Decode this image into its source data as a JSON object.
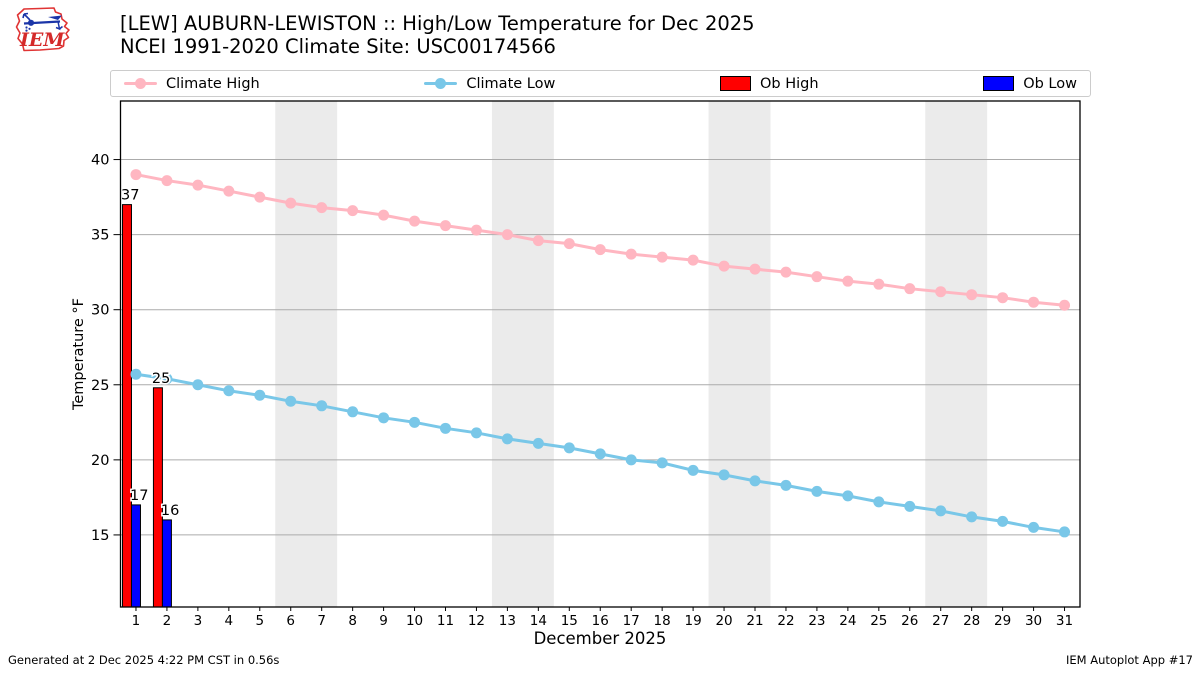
{
  "header": {
    "title": "[LEW] AUBURN-LEWISTON :: High/Low Temperature for Dec 2025",
    "subtitle": "NCEI 1991-2020 Climate Site: USC00174566"
  },
  "logo": {
    "text": "IEM"
  },
  "footer": {
    "generated_text": "Generated at 2 Dec 2025 4:22 PM CST in 0.56s",
    "app_text": "IEM Autoplot App #17"
  },
  "chart_data": {
    "type": "line+bar",
    "title": "[LEW] AUBURN-LEWISTON :: High/Low Temperature for Dec 2025",
    "subtitle": "NCEI 1991-2020 Climate Site: USC00174566",
    "xlabel": "December 2025",
    "ylabel": "Temperature °F",
    "x": [
      1,
      2,
      3,
      4,
      5,
      6,
      7,
      8,
      9,
      10,
      11,
      12,
      13,
      14,
      15,
      16,
      17,
      18,
      19,
      20,
      21,
      22,
      23,
      24,
      25,
      26,
      27,
      28,
      29,
      30,
      31
    ],
    "xlim": [
      0.5,
      31.5
    ],
    "ylim": [
      10.2,
      43.9
    ],
    "yticks": [
      15,
      20,
      25,
      30,
      35,
      40
    ],
    "grid": "horizontal",
    "gridline_color": "#ababab",
    "weekend_bands": [
      [
        5.5,
        7.5
      ],
      [
        12.5,
        14.5
      ],
      [
        19.5,
        21.5
      ],
      [
        26.5,
        28.5
      ]
    ],
    "band_color": "#ebebeb",
    "legend_position": "top",
    "series": [
      {
        "name": "Climate High",
        "type": "line",
        "color": "#ffb6c1",
        "values": [
          39.0,
          38.6,
          38.3,
          37.9,
          37.5,
          37.1,
          36.8,
          36.6,
          36.3,
          35.9,
          35.6,
          35.3,
          35.0,
          34.6,
          34.4,
          34.0,
          33.7,
          33.5,
          33.3,
          32.9,
          32.7,
          32.5,
          32.2,
          31.9,
          31.7,
          31.4,
          31.2,
          31.0,
          30.8,
          30.5,
          30.3
        ]
      },
      {
        "name": "Climate Low",
        "type": "line",
        "color": "#79c7e8",
        "values": [
          25.7,
          25.4,
          25.0,
          24.6,
          24.3,
          23.9,
          23.6,
          23.2,
          22.8,
          22.5,
          22.1,
          21.8,
          21.4,
          21.1,
          20.8,
          20.4,
          20.0,
          19.8,
          19.3,
          19.0,
          18.6,
          18.3,
          17.9,
          17.6,
          17.2,
          16.9,
          16.6,
          16.2,
          15.9,
          15.5,
          15.2
        ]
      },
      {
        "name": "Ob High",
        "type": "bar",
        "color": "#ff0000",
        "days": [
          1,
          2
        ],
        "values": [
          37,
          25
        ],
        "bar_tops": [
          37.0,
          24.8
        ],
        "labels": [
          "37",
          "25"
        ]
      },
      {
        "name": "Ob Low",
        "type": "bar",
        "color": "#0000ff",
        "days": [
          1,
          2
        ],
        "values": [
          17,
          16
        ],
        "bar_tops": [
          17.0,
          16.0
        ],
        "labels": [
          "17",
          "16"
        ]
      }
    ]
  }
}
